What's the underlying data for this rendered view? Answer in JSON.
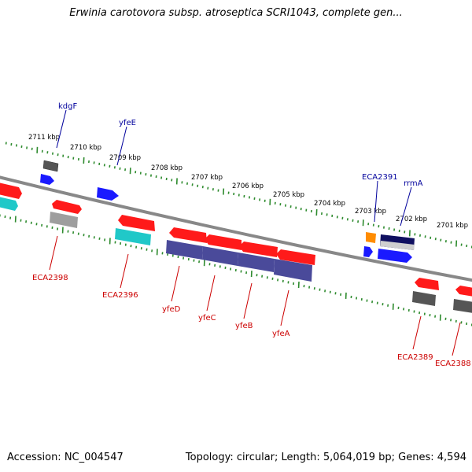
{
  "title": "Erwinia carotovora subsp. atroseptica SCRI1043, complete gen...",
  "footer": {
    "accession": "Accession: NC_004547",
    "topology": "Topology: circular; Length: 5,064,019 bp; Genes: 4,594"
  },
  "colors": {
    "backbone": "#888888",
    "tick": "#2e8b2e",
    "forward_label": "#00009c",
    "reverse_label": "#cc0000",
    "red_gene": "#ff1a1a",
    "cyan_gene": "#20c8c8",
    "grey_gene": "#9e9e9e",
    "dark_grey_gene": "#555555",
    "blue_gene": "#1a1aff",
    "navy_gene": "#101060",
    "purple_gene": "#4a4a9a",
    "orange_gene": "#ff8c00"
  },
  "kbp_ticks": [
    "2711 kbp",
    "2710 kbp",
    "2709 kbp",
    "2708 kbp",
    "2707 kbp",
    "2706 kbp",
    "2705 kbp",
    "2704 kbp",
    "2703 kbp",
    "2702 kbp",
    "2701 kbp"
  ],
  "forward_genes": [
    "kdgF",
    "yfeE",
    "ECA2391",
    "rrmA"
  ],
  "reverse_genes": [
    "ECA2398",
    "ECA2396",
    "yfeD",
    "yfeC",
    "yfeB",
    "yfeA",
    "ECA2389",
    "ECA2388"
  ]
}
